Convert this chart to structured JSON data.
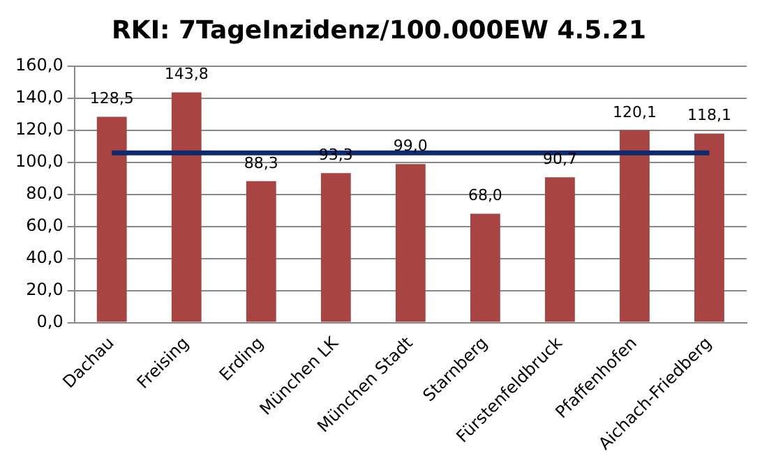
{
  "chart_data": {
    "type": "bar",
    "title": "RKI: 7TageInzidenz/100.000EW 4.5.21",
    "categories": [
      "Dachau",
      "Freising",
      "Erding",
      "München LK",
      "München Stadt",
      "Starnberg",
      "Fürstenfeldbruck",
      "Pfaffenhofen",
      "Aichach-Friedberg"
    ],
    "series": [
      {
        "color": "#a84442",
        "values": [
          128.5,
          143.8,
          88.3,
          93.3,
          99.0,
          68.0,
          90.7,
          120.1,
          118.1
        ],
        "value_labels": [
          "128,5",
          "143,8",
          "88,3",
          "93,3",
          "99,0",
          "68,0",
          "90,7",
          "120,1",
          "118,1"
        ]
      },
      {
        "type": "line",
        "color": "#0d2a6e",
        "values": [
          106,
          106,
          106,
          106,
          106,
          106,
          106,
          106,
          106
        ],
        "marker": "none"
      }
    ],
    "ylim": [
      0,
      160
    ],
    "yticks": [
      {
        "value": 0,
        "label": "0,0"
      },
      {
        "value": 20,
        "label": "20,0"
      },
      {
        "value": 40,
        "label": "40,0"
      },
      {
        "value": 60,
        "label": "60,0"
      },
      {
        "value": 80,
        "label": "80,0"
      },
      {
        "value": 100,
        "label": "100,0"
      },
      {
        "value": 120,
        "label": "120,0"
      },
      {
        "value": 140,
        "label": "140,0"
      },
      {
        "value": 160,
        "label": "160,0"
      }
    ],
    "grid": "y",
    "legend": false
  }
}
